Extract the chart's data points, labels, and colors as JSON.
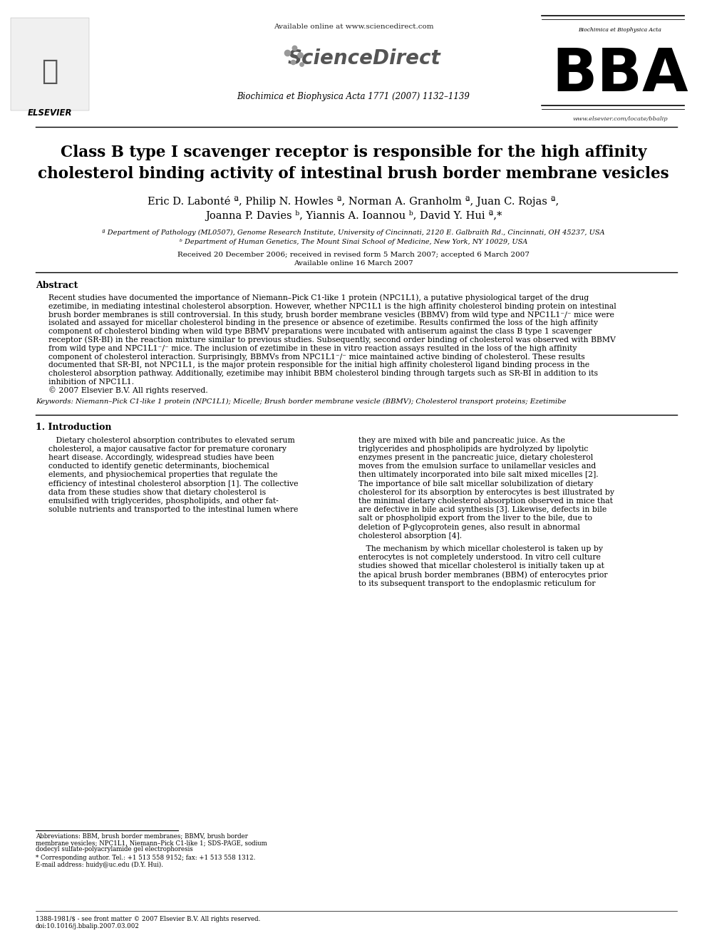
{
  "bg_color": "#ffffff",
  "header_available_text": "Available online at www.sciencedirect.com",
  "header_sd_text": "ScienceDirect",
  "header_journal_text": "Biochimica et Biophysica Acta 1771 (2007) 1132–1139",
  "header_bba_top_text": "Biochimica et Biophysica Acta",
  "header_bba_letters": "BBA",
  "header_url_text": "www.elsevier.com/locate/bbalip",
  "elsevier_text": "ELSEVIER",
  "title_line1": "Class B type I scavenger receptor is responsible for the high affinity",
  "title_line2": "cholesterol binding activity of intestinal brush border membrane vesicles",
  "authors_line1": "Eric D. Labonté ª, Philip N. Howles ª, Norman A. Granholm ª, Juan C. Rojas ª,",
  "authors_line2": "Joanna P. Davies ᵇ, Yiannis A. Ioannou ᵇ, David Y. Hui ª,*",
  "affil_a": "ª Department of Pathology (ML0507), Genome Research Institute, University of Cincinnati, 2120 E. Galbraith Rd., Cincinnati, OH 45237, USA",
  "affil_b": "ᵇ Department of Human Genetics, The Mount Sinai School of Medicine, New York, NY 10029, USA",
  "received_text": "Received 20 December 2006; received in revised form 5 March 2007; accepted 6 March 2007",
  "available_online_text": "Available online 16 March 2007",
  "abstract_header": "Abstract",
  "abstract_body_lines": [
    "Recent studies have documented the importance of Niemann–Pick C1-like 1 protein (NPC1L1), a putative physiological target of the drug",
    "ezetimibe, in mediating intestinal cholesterol absorption. However, whether NPC1L1 is the high affinity cholesterol binding protein on intestinal",
    "brush border membranes is still controversial. In this study, brush border membrane vesicles (BBMV) from wild type and NPC1L1⁻/⁻ mice were",
    "isolated and assayed for micellar cholesterol binding in the presence or absence of ezetimibe. Results confirmed the loss of the high affinity",
    "component of cholesterol binding when wild type BBMV preparations were incubated with antiserum against the class B type 1 scavenger",
    "receptor (SR-BI) in the reaction mixture similar to previous studies. Subsequently, second order binding of cholesterol was observed with BBMV",
    "from wild type and NPC1L1⁻/⁻ mice. The inclusion of ezetimibe in these in vitro reaction assays resulted in the loss of the high affinity",
    "component of cholesterol interaction. Surprisingly, BBMVs from NPC1L1⁻/⁻ mice maintained active binding of cholesterol. These results",
    "documented that SR-BI, not NPC1L1, is the major protein responsible for the initial high affinity cholesterol ligand binding process in the",
    "cholesterol absorption pathway. Additionally, ezetimibe may inhibit BBM cholesterol binding through targets such as SR-BI in addition to its",
    "inhibition of NPC1L1.",
    "© 2007 Elsevier B.V. All rights reserved."
  ],
  "keywords_line": "Keywords: Niemann–Pick C1-like 1 protein (NPC1L1); Micelle; Brush border membrane vesicle (BBMV); Cholesterol transport proteins; Ezetimibe",
  "section1_header": "1. Introduction",
  "intro_left_lines": [
    "   Dietary cholesterol absorption contributes to elevated serum",
    "cholesterol, a major causative factor for premature coronary",
    "heart disease. Accordingly, widespread studies have been",
    "conducted to identify genetic determinants, biochemical",
    "elements, and physiochemical properties that regulate the",
    "efficiency of intestinal cholesterol absorption [1]. The collective",
    "data from these studies show that dietary cholesterol is",
    "emulsified with triglycerides, phospholipids, and other fat-",
    "soluble nutrients and transported to the intestinal lumen where"
  ],
  "intro_right_lines": [
    "they are mixed with bile and pancreatic juice. As the",
    "triglycerides and phospholipids are hydrolyzed by lipolytic",
    "enzymes present in the pancreatic juice, dietary cholesterol",
    "moves from the emulsion surface to unilamellar vesicles and",
    "then ultimately incorporated into bile salt mixed micelles [2].",
    "The importance of bile salt micellar solubilization of dietary",
    "cholesterol for its absorption by enterocytes is best illustrated by",
    "the minimal dietary cholesterol absorption observed in mice that",
    "are defective in bile acid synthesis [3]. Likewise, defects in bile",
    "salt or phospholipid export from the liver to the bile, due to",
    "deletion of P-glycoprotein genes, also result in abnormal",
    "cholesterol absorption [4]."
  ],
  "intro_right2_lines": [
    "   The mechanism by which micellar cholesterol is taken up by",
    "enterocytes is not completely understood. In vitro cell culture",
    "studies showed that micellar cholesterol is initially taken up at",
    "the apical brush border membranes (BBM) of enterocytes prior",
    "to its subsequent transport to the endoplasmic reticulum for"
  ],
  "footnote_line1": "Abbreviations: BBM, brush border membranes; BBMV, brush border",
  "footnote_line2": "membrane vesicles; NPC1L1, Niemann–Pick C1-like 1; SDS-PAGE, sodium",
  "footnote_line3": "dodecyl sulfate-polyacrylamide gel electrophoresis",
  "footnote_corr": "* Corresponding author. Tel.: +1 513 558 9152; fax: +1 513 558 1312.",
  "footnote_email": "E-mail address: huidy@uc.edu (D.Y. Hui).",
  "footer_issn": "1388-1981/$ - see front matter © 2007 Elsevier B.V. All rights reserved.",
  "footer_doi": "doi:10.1016/j.bbalip.2007.03.002"
}
